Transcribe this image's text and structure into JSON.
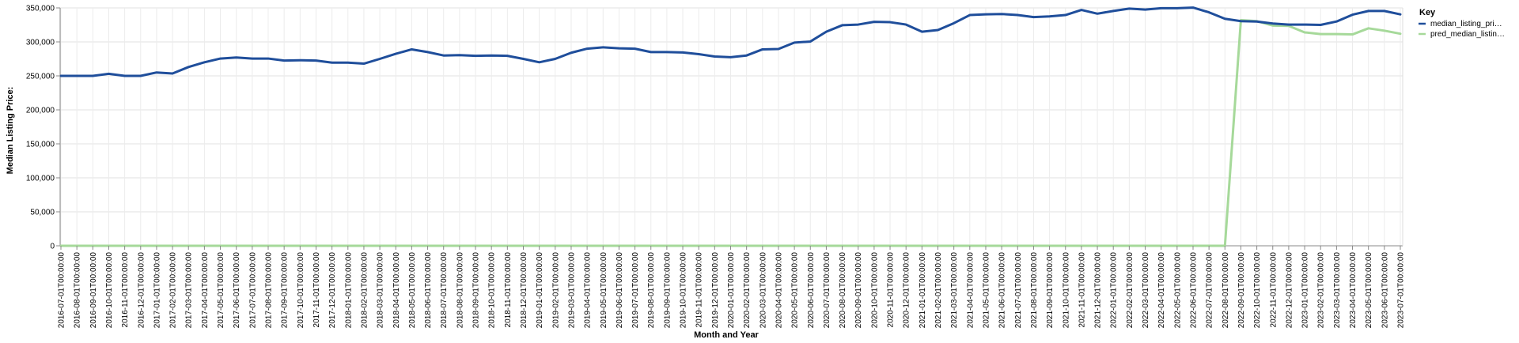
{
  "chart_data": {
    "type": "line",
    "xlabel": "Month and Year",
    "ylabel": "Median Listing Price:",
    "ylim": [
      0,
      350000
    ],
    "yticks": [
      0,
      50000,
      100000,
      150000,
      200000,
      250000,
      300000,
      350000
    ],
    "ytick_labels": [
      "0",
      "50,000",
      "100,000",
      "150,000",
      "200,000",
      "250,000",
      "300,000",
      "350,000"
    ],
    "grid": true,
    "legend": {
      "title": "Key",
      "placement": "right",
      "entries": [
        {
          "label": "median_listing_pri…",
          "color": "#1f4e9b"
        },
        {
          "label": "pred_median_listin…",
          "color": "#a6d99a"
        }
      ]
    },
    "x": [
      "2016-07-01T00:00:00",
      "2016-08-01T00:00:00",
      "2016-09-01T00:00:00",
      "2016-10-01T00:00:00",
      "2016-11-01T00:00:00",
      "2016-12-01T00:00:00",
      "2017-01-01T00:00:00",
      "2017-02-01T00:00:00",
      "2017-03-01T00:00:00",
      "2017-04-01T00:00:00",
      "2017-05-01T00:00:00",
      "2017-06-01T00:00:00",
      "2017-07-01T00:00:00",
      "2017-08-01T00:00:00",
      "2017-09-01T00:00:00",
      "2017-10-01T00:00:00",
      "2017-11-01T00:00:00",
      "2017-12-01T00:00:00",
      "2018-01-01T00:00:00",
      "2018-02-01T00:00:00",
      "2018-03-01T00:00:00",
      "2018-04-01T00:00:00",
      "2018-05-01T00:00:00",
      "2018-06-01T00:00:00",
      "2018-07-01T00:00:00",
      "2018-08-01T00:00:00",
      "2018-09-01T00:00:00",
      "2018-10-01T00:00:00",
      "2018-11-01T00:00:00",
      "2018-12-01T00:00:00",
      "2019-01-01T00:00:00",
      "2019-02-01T00:00:00",
      "2019-03-01T00:00:00",
      "2019-04-01T00:00:00",
      "2019-05-01T00:00:00",
      "2019-06-01T00:00:00",
      "2019-07-01T00:00:00",
      "2019-08-01T00:00:00",
      "2019-09-01T00:00:00",
      "2019-10-01T00:00:00",
      "2019-11-01T00:00:00",
      "2019-12-01T00:00:00",
      "2020-01-01T00:00:00",
      "2020-02-01T00:00:00",
      "2020-03-01T00:00:00",
      "2020-04-01T00:00:00",
      "2020-05-01T00:00:00",
      "2020-06-01T00:00:00",
      "2020-07-01T00:00:00",
      "2020-08-01T00:00:00",
      "2020-09-01T00:00:00",
      "2020-10-01T00:00:00",
      "2020-11-01T00:00:00",
      "2020-12-01T00:00:00",
      "2021-01-01T00:00:00",
      "2021-02-01T00:00:00",
      "2021-03-01T00:00:00",
      "2021-04-01T00:00:00",
      "2021-05-01T00:00:00",
      "2021-06-01T00:00:00",
      "2021-07-01T00:00:00",
      "2021-08-01T00:00:00",
      "2021-09-01T00:00:00",
      "2021-10-01T00:00:00",
      "2021-11-01T00:00:00",
      "2021-12-01T00:00:00",
      "2022-01-01T00:00:00",
      "2022-02-01T00:00:00",
      "2022-03-01T00:00:00",
      "2022-04-01T00:00:00",
      "2022-05-01T00:00:00",
      "2022-06-01T00:00:00",
      "2022-07-01T00:00:00",
      "2022-08-01T00:00:00",
      "2022-09-01T00:00:00",
      "2022-10-01T00:00:00",
      "2022-11-01T00:00:00",
      "2022-12-01T00:00:00",
      "2023-01-01T00:00:00",
      "2023-02-01T00:00:00",
      "2023-03-01T00:00:00",
      "2023-04-01T00:00:00",
      "2023-05-01T00:00:00",
      "2023-06-01T00:00:00",
      "2023-07-01T00:00:00"
    ],
    "series": [
      {
        "name": "median_listing_pri…",
        "color": "#1f4e9b",
        "values": [
          250000,
          250000,
          250000,
          253000,
          250000,
          250000,
          255000,
          253500,
          263000,
          270000,
          275500,
          277000,
          275500,
          275500,
          272500,
          273000,
          272500,
          269500,
          269500,
          268000,
          275000,
          282500,
          289000,
          285000,
          280000,
          280500,
          279500,
          280000,
          279500,
          275000,
          270000,
          275000,
          284000,
          290000,
          292000,
          290500,
          290000,
          285000,
          285000,
          284500,
          282000,
          278500,
          277500,
          280000,
          289000,
          289500,
          299000,
          300500,
          315000,
          324500,
          325500,
          329500,
          329000,
          325500,
          315000,
          317500,
          327500,
          339500,
          340500,
          341000,
          339500,
          336500,
          337500,
          339500,
          347000,
          341500,
          345500,
          349000,
          347500,
          349500,
          349500,
          350500,
          343500,
          334000,
          330500,
          330000,
          327000,
          325500,
          325500,
          325000,
          330000,
          340000,
          345500,
          345500,
          340500
        ]
      },
      {
        "name": "pred_median_listin…",
        "color": "#a6d99a",
        "values": [
          0,
          0,
          0,
          0,
          0,
          0,
          0,
          0,
          0,
          0,
          0,
          0,
          0,
          0,
          0,
          0,
          0,
          0,
          0,
          0,
          0,
          0,
          0,
          0,
          0,
          0,
          0,
          0,
          0,
          0,
          0,
          0,
          0,
          0,
          0,
          0,
          0,
          0,
          0,
          0,
          0,
          0,
          0,
          0,
          0,
          0,
          0,
          0,
          0,
          0,
          0,
          0,
          0,
          0,
          0,
          0,
          0,
          0,
          0,
          0,
          0,
          0,
          0,
          0,
          0,
          0,
          0,
          0,
          0,
          0,
          0,
          0,
          0,
          0,
          332000,
          330500,
          324000,
          323500,
          314000,
          311500,
          311500,
          311000,
          320000,
          316500,
          312000
        ]
      }
    ]
  }
}
